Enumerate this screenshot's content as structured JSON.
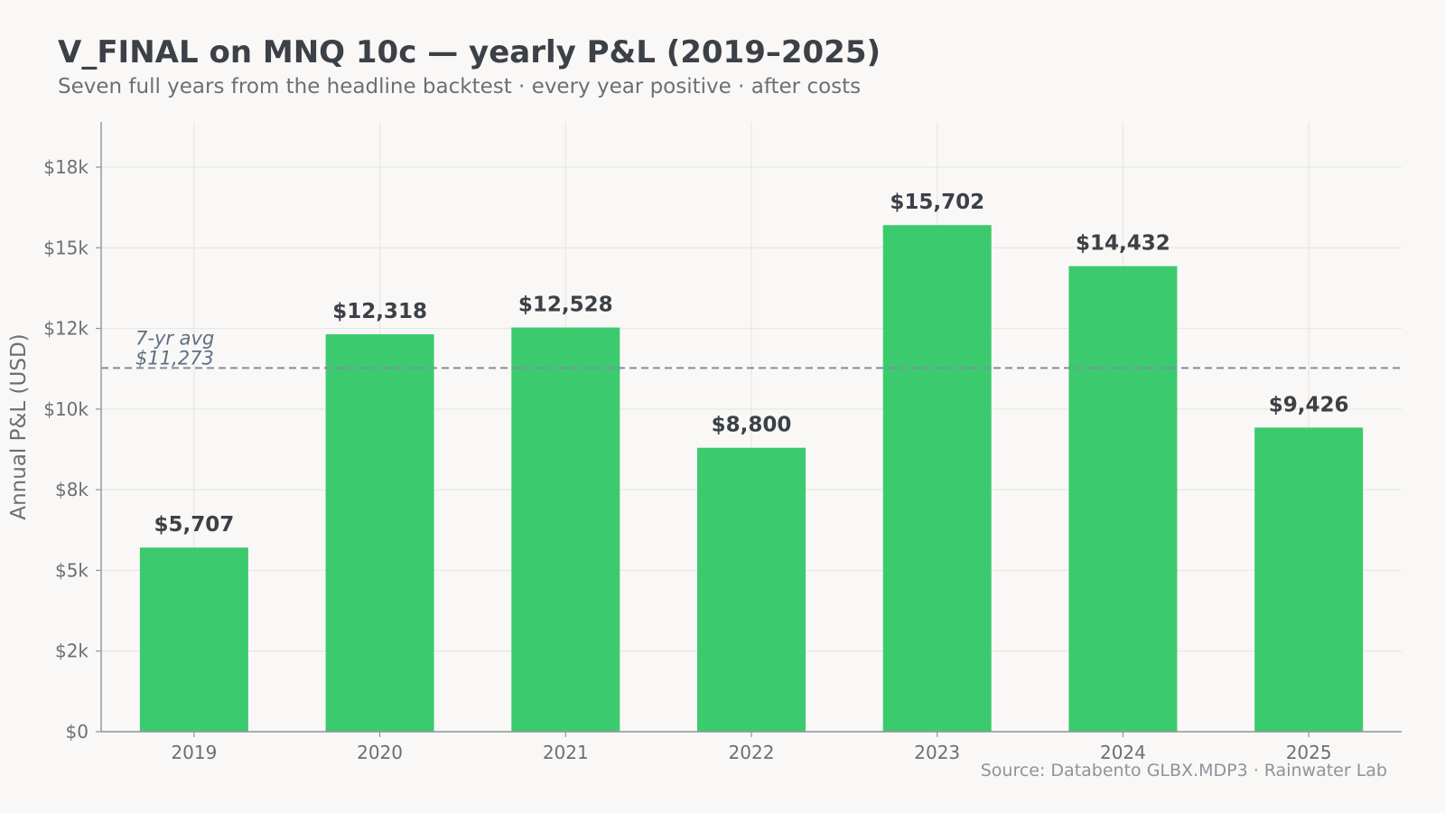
{
  "title": "V_FINAL on MNQ 10c — yearly P&L (2019–2025)",
  "subtitle": "Seven full years from the headline backtest · every year positive · after costs",
  "source": "Source: Databento GLBX.MDP3 · Rainwater Lab",
  "colors": {
    "bar": "#3cca6e",
    "avg_line": "#7f8ea3",
    "grid": "#e8e7e4",
    "axis": "#8e939a"
  },
  "chart_data": {
    "type": "bar",
    "categories": [
      "2019",
      "2020",
      "2021",
      "2022",
      "2023",
      "2024",
      "2025"
    ],
    "values": [
      5707,
      12318,
      12528,
      8800,
      15702,
      14432,
      9426
    ],
    "value_labels": [
      "$5,707",
      "$12,318",
      "$12,528",
      "$8,800",
      "$15,702",
      "$14,432",
      "$9,426"
    ],
    "ylabel": "Annual P&L (USD)",
    "ylim": [
      0,
      17500
    ],
    "y_ticks": [
      {
        "value": 0,
        "label": "$0"
      },
      {
        "value": 2500,
        "label": "$2k"
      },
      {
        "value": 5000,
        "label": "$5k"
      },
      {
        "value": 7500,
        "label": "$8k"
      },
      {
        "value": 10000,
        "label": "$10k"
      },
      {
        "value": 12500,
        "label": "$12k"
      },
      {
        "value": 15000,
        "label": "$15k"
      },
      {
        "value": 17500,
        "label": "$18k"
      }
    ],
    "reference_line": {
      "value": 11273,
      "label_line1": "7-yr avg",
      "label_line2": "$11,273"
    },
    "grid": true,
    "legend": "none"
  }
}
